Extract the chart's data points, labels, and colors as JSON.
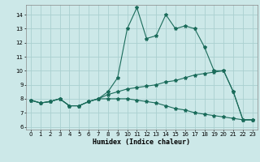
{
  "xlabel": "Humidex (Indice chaleur)",
  "bg_color": "#cce8e8",
  "grid_color": "#aad0d0",
  "line_color": "#1a6b5a",
  "xlim": [
    -0.5,
    23.5
  ],
  "ylim": [
    5.8,
    14.7
  ],
  "yticks": [
    6,
    7,
    8,
    9,
    10,
    11,
    12,
    13,
    14
  ],
  "xticks": [
    0,
    1,
    2,
    3,
    4,
    5,
    6,
    7,
    8,
    9,
    10,
    11,
    12,
    13,
    14,
    15,
    16,
    17,
    18,
    19,
    20,
    21,
    22,
    23
  ],
  "line1_x": [
    0,
    1,
    2,
    3,
    4,
    5,
    6,
    7,
    8,
    9,
    10,
    11,
    12,
    13,
    14,
    15,
    16,
    17,
    18,
    19,
    20,
    21,
    22,
    23
  ],
  "line1_y": [
    7.9,
    7.7,
    7.8,
    8.0,
    7.5,
    7.5,
    7.8,
    8.0,
    8.5,
    9.5,
    13.0,
    14.5,
    12.3,
    12.5,
    14.0,
    13.0,
    13.2,
    13.0,
    11.7,
    10.0,
    10.0,
    8.5,
    6.5,
    6.5
  ],
  "line2_x": [
    0,
    1,
    2,
    3,
    4,
    5,
    6,
    7,
    8,
    9,
    10,
    11,
    12,
    13,
    14,
    15,
    16,
    17,
    18,
    19,
    20,
    21,
    22,
    23
  ],
  "line2_y": [
    7.9,
    7.7,
    7.8,
    8.0,
    7.5,
    7.5,
    7.8,
    8.0,
    8.3,
    8.5,
    8.7,
    8.8,
    8.9,
    9.0,
    9.2,
    9.3,
    9.5,
    9.7,
    9.8,
    9.9,
    10.0,
    8.5,
    6.5,
    6.5
  ],
  "line3_x": [
    0,
    1,
    2,
    3,
    4,
    5,
    6,
    7,
    8,
    9,
    10,
    11,
    12,
    13,
    14,
    15,
    16,
    17,
    18,
    19,
    20,
    21,
    22,
    23
  ],
  "line3_y": [
    7.9,
    7.7,
    7.8,
    8.0,
    7.5,
    7.5,
    7.8,
    8.0,
    8.0,
    8.0,
    8.0,
    7.9,
    7.8,
    7.7,
    7.5,
    7.3,
    7.2,
    7.0,
    6.9,
    6.8,
    6.7,
    6.6,
    6.5,
    6.5
  ],
  "tick_fontsize": 5.0,
  "xlabel_fontsize": 6.0,
  "marker_size": 3.0,
  "linewidth": 0.8
}
